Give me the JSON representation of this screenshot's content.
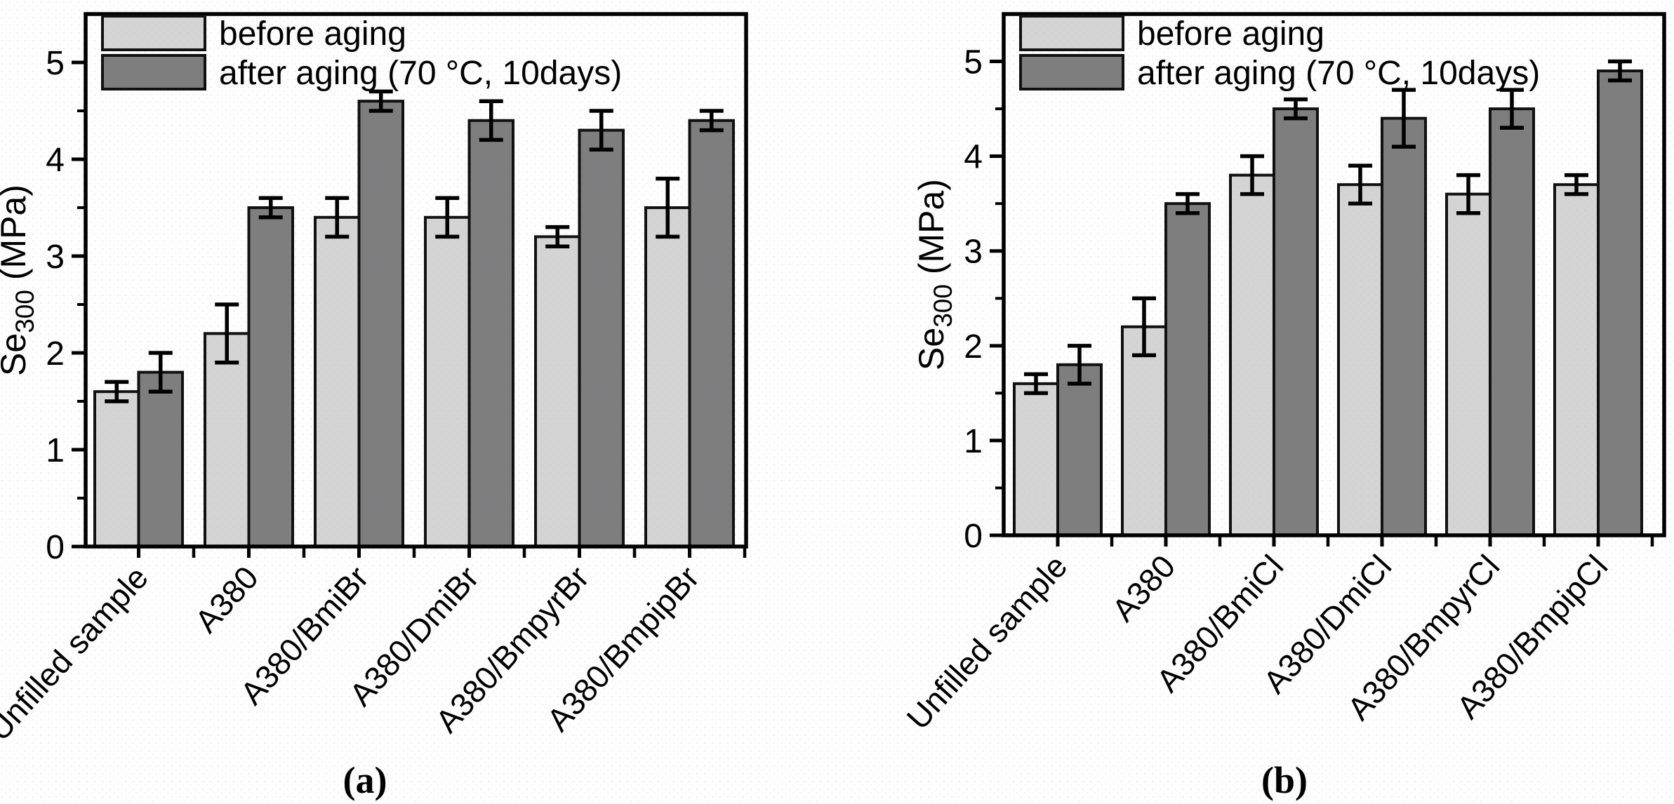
{
  "figure": {
    "colors": {
      "before_fill": "#d4d4d4",
      "after_fill": "#7e7e7e",
      "bar_dot_light": "#c9c9d2",
      "bar_dot_dark": "#79798a",
      "bar_stroke": "#111111",
      "axis": "#000000",
      "error_bar": "#000000",
      "text": "#000000",
      "background": "#fdfdfd",
      "background_dot": "#e7e7f0"
    },
    "legend": {
      "before_label": "before aging",
      "after_label": "after aging (70 °C, 10days)"
    },
    "ylabel": {
      "prefix": "Se",
      "subscript": "300",
      "suffix": " (MPa)"
    }
  },
  "chart_data": [
    {
      "id": "a",
      "type": "bar",
      "caption": "(a)",
      "ylabel": "Se300 (MPa)",
      "xlabel": "",
      "categories": [
        "Unfilled sample",
        "A380",
        "A380/BmiBr",
        "A380/DmiBr",
        "A380/BmpyrBr",
        "A380/BmpipBr"
      ],
      "series": [
        {
          "name": "before aging",
          "values": [
            1.6,
            2.2,
            3.4,
            3.4,
            3.2,
            3.5
          ],
          "errors": [
            0.1,
            0.3,
            0.2,
            0.2,
            0.1,
            0.3
          ]
        },
        {
          "name": "after aging (70 °C, 10days)",
          "values": [
            1.8,
            3.5,
            4.6,
            4.4,
            4.3,
            4.4
          ],
          "errors": [
            0.2,
            0.1,
            0.1,
            0.2,
            0.2,
            0.1
          ]
        }
      ],
      "yticks": [
        0,
        1,
        2,
        3,
        4,
        5
      ],
      "minor_yticks": [
        0.5,
        1.5,
        2.5,
        3.5,
        4.5
      ],
      "ylim": [
        0,
        5.5
      ],
      "grid": false,
      "legend_position": "top-left"
    },
    {
      "id": "b",
      "type": "bar",
      "caption": "(b)",
      "ylabel": "Se300 (MPa)",
      "xlabel": "",
      "categories": [
        "Unfilled sample",
        "A380",
        "A380/BmiCl",
        "A380/DmiCl",
        "A380/BmpyrCl",
        "A380/BmpipCl"
      ],
      "series": [
        {
          "name": "before aging",
          "values": [
            1.6,
            2.2,
            3.8,
            3.7,
            3.6,
            3.7
          ],
          "errors": [
            0.1,
            0.3,
            0.2,
            0.2,
            0.2,
            0.1
          ]
        },
        {
          "name": "after aging (70 °C, 10days)",
          "values": [
            1.8,
            3.5,
            4.5,
            4.4,
            4.5,
            4.9
          ],
          "errors": [
            0.2,
            0.1,
            0.1,
            0.3,
            0.2,
            0.1
          ]
        }
      ],
      "yticks": [
        0,
        1,
        2,
        3,
        4,
        5
      ],
      "minor_yticks": [
        0.5,
        1.5,
        2.5,
        3.5,
        4.5
      ],
      "ylim": [
        0,
        5.5
      ],
      "grid": false,
      "legend_position": "top-left"
    }
  ]
}
